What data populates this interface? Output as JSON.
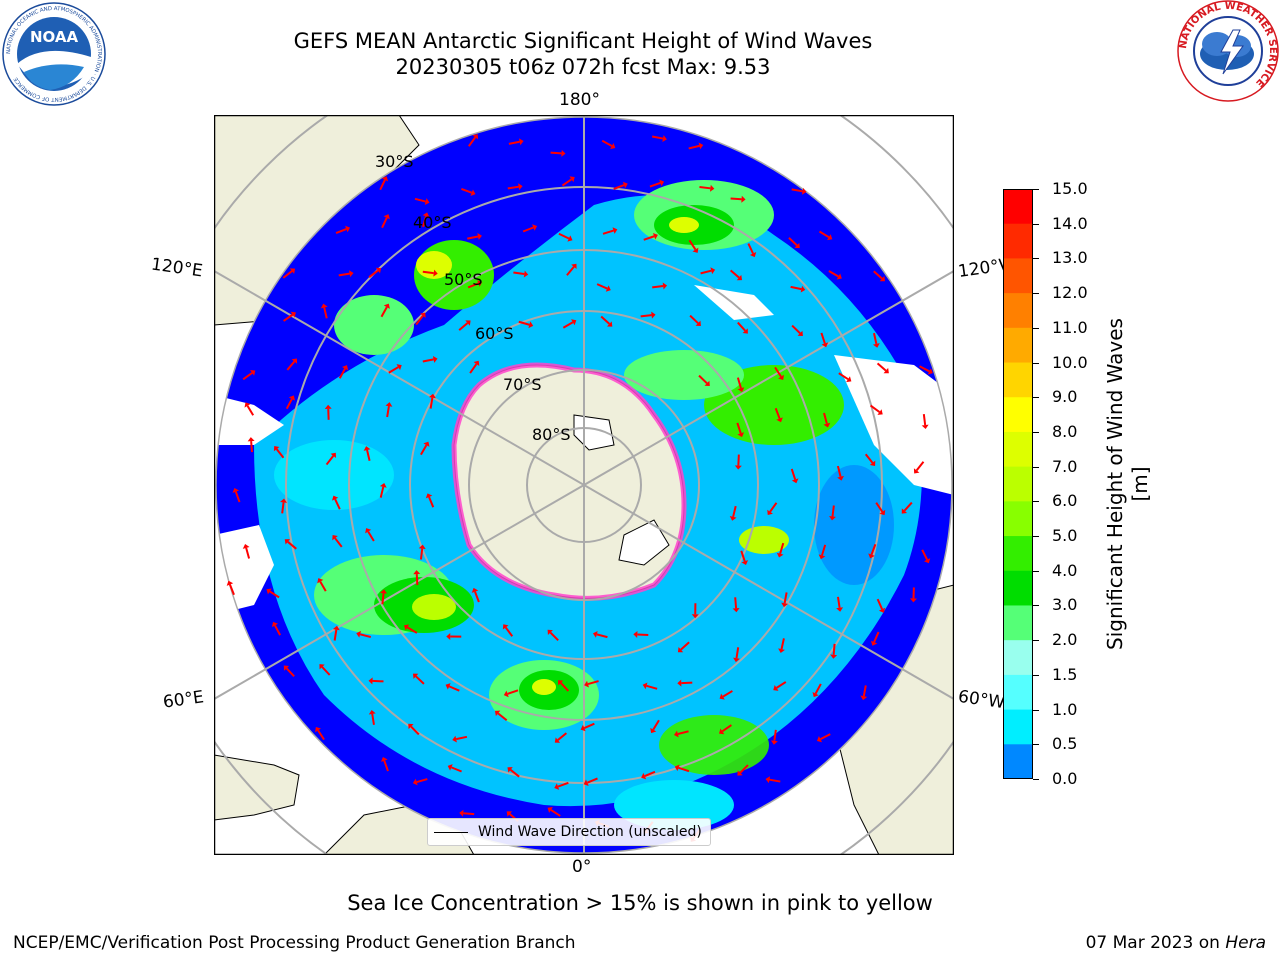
{
  "title": {
    "line1": "GEFS MEAN Antarctic Significant Height of Wind Waves",
    "line2": "20230305 t06z 072h fcst   Max: 9.53"
  },
  "logos": {
    "noaa_text": "NOAA",
    "noaa_ring_text": "NATIONAL OCEANIC AND ATMOSPHERIC ADMINISTRATION · U.S. DEPARTMENT OF COMMERCE",
    "nws_ring_text": "NATIONAL WEATHER SERVICE"
  },
  "map": {
    "projection": "south polar stereographic",
    "longitude_labels": {
      "top": "180°",
      "bottom": "0°",
      "upper_left": "120°E",
      "lower_left": "60°E",
      "upper_right": "120°W",
      "lower_right": "60°W"
    },
    "latitude_labels": [
      "30°S",
      "40°S",
      "50°S",
      "60°S",
      "70°S",
      "80°S"
    ],
    "legend_label": "Wind Wave Direction (unscaled)"
  },
  "colorbar": {
    "label": "Significant Height of Wind Waves [m]",
    "ticks": [
      "15.0",
      "14.0",
      "13.0",
      "12.0",
      "11.0",
      "10.0",
      "9.0",
      "8.0",
      "7.0",
      "6.0",
      "5.0",
      "4.0",
      "3.0",
      "2.0",
      "1.5",
      "1.0",
      "0.5",
      "0.0"
    ],
    "bin_colors": [
      "#ff0000",
      "#ff2a00",
      "#ff5500",
      "#ff8000",
      "#ffaa00",
      "#ffd500",
      "#ffff00",
      "#ddff00",
      "#bbff00",
      "#88ff00",
      "#33ee00",
      "#00dd00",
      "#55ff77",
      "#99ffee",
      "#55ffff",
      "#00eeff",
      "#0088ff",
      "#0000ff"
    ]
  },
  "notes": {
    "ice": "Sea Ice Concentration > 15% is shown in pink to yellow"
  },
  "footer": {
    "left": "NCEP/EMC/Verification Post Processing Product Generation Branch",
    "right_prefix": "07 Mar 2023 on ",
    "right_system": "Hera"
  },
  "colors": {
    "land": "#efefdb",
    "ocean_low": "#0000ff",
    "ocean_mid": "#00e5ff",
    "ocean_high": "#00dd00",
    "ice_edge": "#ff44cc",
    "arrows": "#ff0000"
  }
}
